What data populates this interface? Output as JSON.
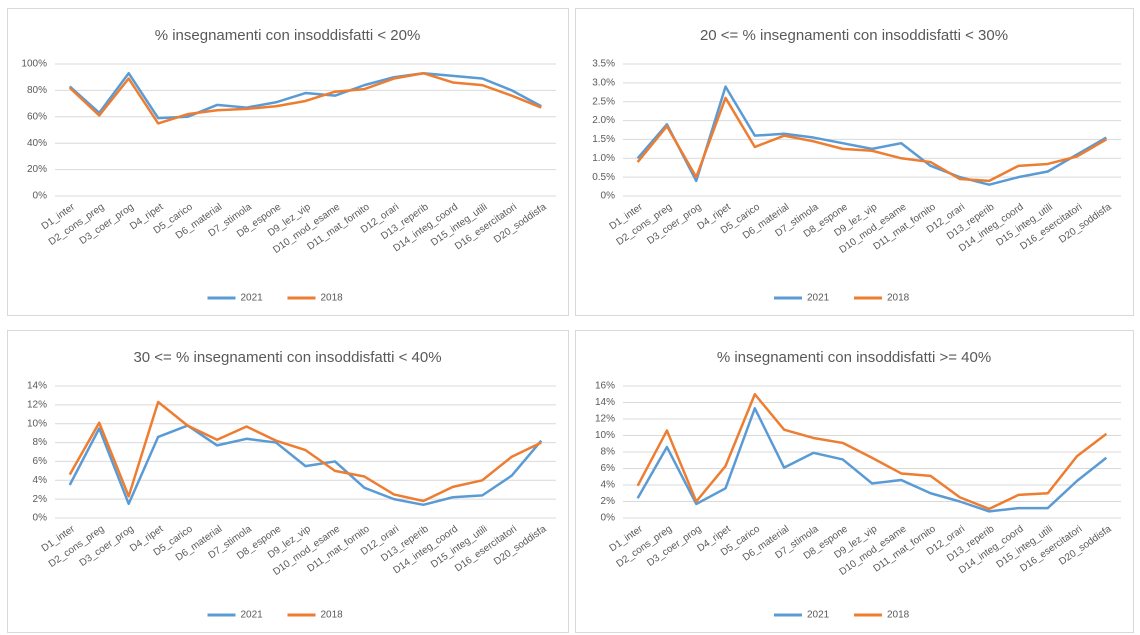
{
  "chart_data": [
    {
      "type": "line",
      "title": "% insegnamenti con insoddisfatti < 20%",
      "categories": [
        "D1_inter",
        "D2_cons_preg",
        "D3_coer_prog",
        "D4_ripet",
        "D5_carico",
        "D6_material",
        "D7_stimola",
        "D8_espone",
        "D9_lez_vip",
        "D10_mod_esame",
        "D11_mat_fornito",
        "D12_orari",
        "D13_reperib",
        "D14_integ_coord",
        "D15_integ_utili",
        "D16_esercitatori",
        "D20_soddisfa"
      ],
      "series": [
        {
          "name": "2021",
          "color": "#5b9bd5",
          "values": [
            83,
            63,
            93,
            59,
            60,
            69,
            67,
            71,
            78,
            76,
            84,
            90,
            93,
            91,
            89,
            80,
            68
          ]
        },
        {
          "name": "2018",
          "color": "#ed7d31",
          "values": [
            82,
            61,
            89,
            55,
            62,
            65,
            66,
            68,
            72,
            79,
            81,
            89,
            93,
            86,
            84,
            76,
            67
          ]
        }
      ],
      "ylim": [
        0,
        100
      ],
      "yticks": [
        {
          "value": 0,
          "label": "0%"
        },
        {
          "value": 20,
          "label": "20%"
        },
        {
          "value": 40,
          "label": "40%"
        },
        {
          "value": 60,
          "label": "60%"
        },
        {
          "value": 80,
          "label": "80%"
        },
        {
          "value": 100,
          "label": "100%"
        }
      ],
      "grid": true,
      "legend": "bottom"
    },
    {
      "type": "line",
      "title": "20 <= % insegnamenti con insoddisfatti < 30%",
      "categories": [
        "D1_inter",
        "D2_cons_preg",
        "D3_coer_prog",
        "D4_ripet",
        "D5_carico",
        "D6_material",
        "D7_stimola",
        "D8_espone",
        "D9_lez_vip",
        "D10_mod_esame",
        "D11_mat_fornito",
        "D12_orari",
        "D13_reperib",
        "D14_integ_coord",
        "D15_integ_utili",
        "D16_esercitatori",
        "D20_soddisfa"
      ],
      "series": [
        {
          "name": "2021",
          "color": "#5b9bd5",
          "values": [
            1.0,
            1.9,
            0.4,
            2.9,
            1.6,
            1.65,
            1.55,
            1.4,
            1.25,
            1.4,
            0.8,
            0.5,
            0.3,
            0.5,
            0.65,
            1.1,
            1.55
          ]
        },
        {
          "name": "2018",
          "color": "#ed7d31",
          "values": [
            0.9,
            1.85,
            0.5,
            2.6,
            1.3,
            1.6,
            1.45,
            1.25,
            1.2,
            1.0,
            0.9,
            0.45,
            0.4,
            0.8,
            0.85,
            1.05,
            1.5
          ]
        }
      ],
      "ylim": [
        0,
        3.5
      ],
      "yticks": [
        {
          "value": 0,
          "label": "0%"
        },
        {
          "value": 0.5,
          "label": "0.5%"
        },
        {
          "value": 1,
          "label": "1.0%"
        },
        {
          "value": 1.5,
          "label": "1.5%"
        },
        {
          "value": 2,
          "label": "2.0%"
        },
        {
          "value": 2.5,
          "label": "2.5%"
        },
        {
          "value": 3,
          "label": "3.0%"
        },
        {
          "value": 3.5,
          "label": "3.5%"
        }
      ],
      "grid": true,
      "legend": "bottom"
    },
    {
      "type": "line",
      "title": "30 <= % insegnamenti con insoddisfatti < 40%",
      "categories": [
        "D1_inter",
        "D2_cons_preg",
        "D3_coer_prog",
        "D4_ripet",
        "D5_carico",
        "D6_material",
        "D7_stimola",
        "D8_espone",
        "D9_lez_vip",
        "D10_mod_esame",
        "D11_mat_fornito",
        "D12_orari",
        "D13_reperib",
        "D14_integ_coord",
        "D15_integ_utili",
        "D16_esercitatori",
        "D20_soddisfa"
      ],
      "series": [
        {
          "name": "2021",
          "color": "#5b9bd5",
          "values": [
            3.5,
            9.5,
            1.5,
            8.6,
            9.8,
            7.7,
            8.4,
            8.0,
            5.5,
            6.0,
            3.2,
            2.0,
            1.4,
            2.2,
            2.4,
            4.5,
            8.2
          ]
        },
        {
          "name": "2018",
          "color": "#ed7d31",
          "values": [
            4.6,
            10.1,
            2.3,
            12.3,
            9.8,
            8.3,
            9.7,
            8.2,
            7.2,
            5.0,
            4.4,
            2.5,
            1.8,
            3.3,
            4.0,
            6.5,
            8.0
          ]
        }
      ],
      "ylim": [
        0,
        14
      ],
      "yticks": [
        {
          "value": 0,
          "label": "0%"
        },
        {
          "value": 2,
          "label": "2%"
        },
        {
          "value": 4,
          "label": "4%"
        },
        {
          "value": 6,
          "label": "6%"
        },
        {
          "value": 8,
          "label": "8%"
        },
        {
          "value": 10,
          "label": "10%"
        },
        {
          "value": 12,
          "label": "12%"
        },
        {
          "value": 14,
          "label": "14%"
        }
      ],
      "grid": true,
      "legend": "bottom"
    },
    {
      "type": "line",
      "title": "% insegnamenti con insoddisfatti >= 40%",
      "categories": [
        "D1_inter",
        "D2_cons_preg",
        "D3_coer_prog",
        "D4_ripet",
        "D5_carico",
        "D6_material",
        "D7_stimola",
        "D8_espone",
        "D9_lez_vip",
        "D10_mod_esame",
        "D11_mat_fornito",
        "D12_orari",
        "D13_reperib",
        "D14_integ_coord",
        "D15_integ_utili",
        "D16_esercitatori",
        "D20_soddisfa"
      ],
      "series": [
        {
          "name": "2021",
          "color": "#5b9bd5",
          "values": [
            2.4,
            8.6,
            1.7,
            3.6,
            13.3,
            6.1,
            7.9,
            7.1,
            4.2,
            4.6,
            3.0,
            2.0,
            0.8,
            1.2,
            1.2,
            4.5,
            7.3
          ]
        },
        {
          "name": "2018",
          "color": "#ed7d31",
          "values": [
            3.9,
            10.6,
            2.0,
            6.3,
            15.0,
            10.7,
            9.7,
            9.1,
            7.3,
            5.4,
            5.1,
            2.5,
            1.1,
            2.8,
            3.0,
            7.5,
            10.2
          ]
        }
      ],
      "ylim": [
        0,
        16
      ],
      "yticks": [
        {
          "value": 0,
          "label": "0%"
        },
        {
          "value": 2,
          "label": "2%"
        },
        {
          "value": 4,
          "label": "4%"
        },
        {
          "value": 6,
          "label": "6%"
        },
        {
          "value": 8,
          "label": "8%"
        },
        {
          "value": 10,
          "label": "10%"
        },
        {
          "value": 12,
          "label": "12%"
        },
        {
          "value": 14,
          "label": "14%"
        },
        {
          "value": 16,
          "label": "16%"
        }
      ],
      "grid": true,
      "legend": "bottom"
    }
  ]
}
